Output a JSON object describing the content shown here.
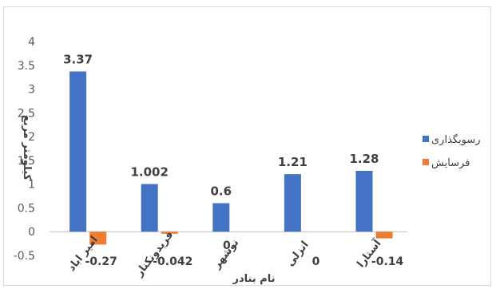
{
  "chart_data": {
    "type": "bar",
    "categories": [
      "امیر اباد",
      "فریدونکنار",
      "نوشهر",
      "انزلی",
      "آستارا"
    ],
    "series": [
      {
        "name": "رسوبگذاری",
        "values": [
          3.37,
          1.002,
          0.6,
          1.21,
          1.28
        ],
        "labels": [
          "3.37",
          "1.002",
          "0.6",
          "1.21",
          "1.28"
        ],
        "color": "#4472C4"
      },
      {
        "name": "فرسایش",
        "values": [
          -0.27,
          -0.042,
          0,
          0,
          -0.14
        ],
        "labels": [
          "-0.27",
          "-0.042",
          "0",
          "0",
          "-0.14"
        ],
        "color": "#ED7D31"
      }
    ],
    "xlabel": "نام بنادر",
    "ylabel": "کیلومتر مربع",
    "ylim": [
      -0.5,
      4
    ],
    "yticks": [
      "-0.5",
      "0",
      "0.5",
      "1",
      "1.5",
      "2",
      "2.5",
      "3",
      "3.5",
      "4"
    ],
    "grid": false,
    "legend": "right"
  }
}
